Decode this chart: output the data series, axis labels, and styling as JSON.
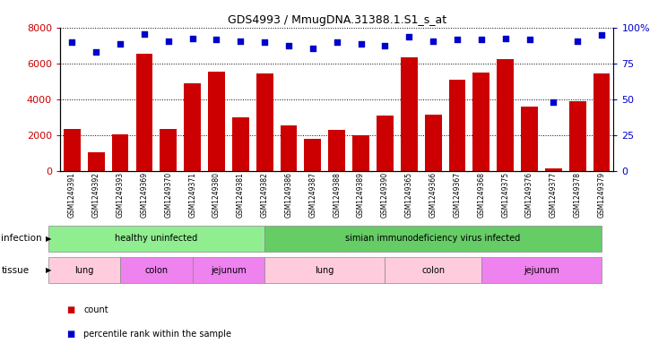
{
  "title": "GDS4993 / MmugDNA.31388.1.S1_s_at",
  "samples": [
    "GSM1249391",
    "GSM1249392",
    "GSM1249393",
    "GSM1249369",
    "GSM1249370",
    "GSM1249371",
    "GSM1249380",
    "GSM1249381",
    "GSM1249382",
    "GSM1249386",
    "GSM1249387",
    "GSM1249388",
    "GSM1249389",
    "GSM1249390",
    "GSM1249365",
    "GSM1249366",
    "GSM1249367",
    "GSM1249368",
    "GSM1249375",
    "GSM1249376",
    "GSM1249377",
    "GSM1249378",
    "GSM1249379"
  ],
  "counts": [
    2350,
    1050,
    2050,
    6550,
    2350,
    4900,
    5550,
    3000,
    5450,
    2550,
    1800,
    2300,
    2000,
    3100,
    6350,
    3150,
    5100,
    5500,
    6250,
    3600,
    150,
    3900,
    5450
  ],
  "percentiles": [
    90,
    83,
    89,
    96,
    91,
    93,
    92,
    91,
    90,
    88,
    86,
    90,
    89,
    88,
    94,
    91,
    92,
    92,
    93,
    92,
    48,
    91,
    95
  ],
  "bar_color": "#cc0000",
  "dot_color": "#0000cc",
  "ylim_left": [
    0,
    8000
  ],
  "ylim_right": [
    0,
    100
  ],
  "yticks_left": [
    0,
    2000,
    4000,
    6000,
    8000
  ],
  "yticks_right": [
    0,
    25,
    50,
    75,
    100
  ],
  "yticklabels_right": [
    "0",
    "25",
    "50",
    "75",
    "100%"
  ],
  "infection_groups": [
    {
      "label": "healthy uninfected",
      "start": 0,
      "end": 8,
      "color": "#90ee90"
    },
    {
      "label": "simian immunodeficiency virus infected",
      "start": 9,
      "end": 22,
      "color": "#66cc66"
    }
  ],
  "tissue_groups": [
    {
      "label": "lung",
      "start": 0,
      "end": 2,
      "color": "#ffccdd"
    },
    {
      "label": "colon",
      "start": 3,
      "end": 5,
      "color": "#ee82ee"
    },
    {
      "label": "jejunum",
      "start": 6,
      "end": 8,
      "color": "#ee82ee"
    },
    {
      "label": "lung",
      "start": 9,
      "end": 13,
      "color": "#ffccdd"
    },
    {
      "label": "colon",
      "start": 14,
      "end": 17,
      "color": "#ffccdd"
    },
    {
      "label": "jejunum",
      "start": 18,
      "end": 22,
      "color": "#ee82ee"
    }
  ],
  "infection_label": "infection",
  "tissue_label": "tissue",
  "legend_count_label": "count",
  "legend_percentile_label": "percentile rank within the sample",
  "bg_color": "#ffffff",
  "ax_bg_color": "#e8e8e8"
}
